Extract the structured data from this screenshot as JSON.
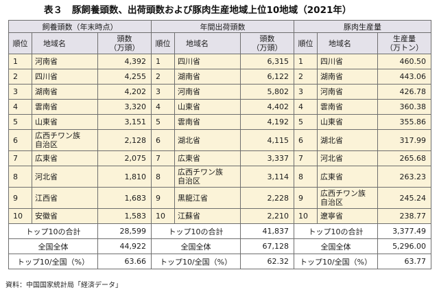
{
  "title": {
    "number": "表３",
    "text": "豚飼養頭数、出荷頭数および豚肉生産地域上位10地域（2021年）"
  },
  "groups": [
    "飼養頭数（年末時点）",
    "年間出荷頭数",
    "豚肉生産量"
  ],
  "columns": {
    "rank": "順位",
    "region": "地域名",
    "g1_value": [
      "頭数",
      "（万頭）"
    ],
    "g2_value": [
      "頭数",
      "（万頭）"
    ],
    "g3_value": [
      "生産量",
      "（万トン）"
    ]
  },
  "rows": [
    {
      "rank": "1",
      "g1": {
        "region": [
          "河南省"
        ],
        "value": "4,392"
      },
      "g2": {
        "region": [
          "四川省"
        ],
        "value": "6,315"
      },
      "g3": {
        "region": [
          "四川省"
        ],
        "value": "460.50"
      }
    },
    {
      "rank": "2",
      "g1": {
        "region": [
          "四川省"
        ],
        "value": "4,255"
      },
      "g2": {
        "region": [
          "湖南省"
        ],
        "value": "6,122"
      },
      "g3": {
        "region": [
          "湖南省"
        ],
        "value": "443.06"
      }
    },
    {
      "rank": "3",
      "g1": {
        "region": [
          "湖南省"
        ],
        "value": "4,202"
      },
      "g2": {
        "region": [
          "河南省"
        ],
        "value": "5,802"
      },
      "g3": {
        "region": [
          "河南省"
        ],
        "value": "426.78"
      }
    },
    {
      "rank": "4",
      "g1": {
        "region": [
          "雲南省"
        ],
        "value": "3,320"
      },
      "g2": {
        "region": [
          "山東省"
        ],
        "value": "4,402"
      },
      "g3": {
        "region": [
          "雲南省"
        ],
        "value": "360.38"
      }
    },
    {
      "rank": "5",
      "g1": {
        "region": [
          "山東省"
        ],
        "value": "3,151"
      },
      "g2": {
        "region": [
          "雲南省"
        ],
        "value": "4,192"
      },
      "g3": {
        "region": [
          "山東省"
        ],
        "value": "355.86"
      }
    },
    {
      "rank": "6",
      "g1": {
        "region": [
          "広西チワン族",
          "自治区"
        ],
        "value": "2,128"
      },
      "g2": {
        "region": [
          "湖北省"
        ],
        "value": "4,115"
      },
      "g3": {
        "region": [
          "湖北省"
        ],
        "value": "317.99"
      }
    },
    {
      "rank": "7",
      "g1": {
        "region": [
          "広東省"
        ],
        "value": "2,075"
      },
      "g2": {
        "region": [
          "広東省"
        ],
        "value": "3,337"
      },
      "g3": {
        "region": [
          "河北省"
        ],
        "value": "265.68"
      }
    },
    {
      "rank": "8",
      "g1": {
        "region": [
          "河北省"
        ],
        "value": "1,810"
      },
      "g2": {
        "region": [
          "広西チワン族",
          "自治区"
        ],
        "value": "3,114"
      },
      "g3": {
        "region": [
          "広東省"
        ],
        "value": "263.23"
      }
    },
    {
      "rank": "9",
      "g1": {
        "region": [
          "江西省"
        ],
        "value": "1,683"
      },
      "g2": {
        "region": [
          "黒龍江省"
        ],
        "value": "2,228"
      },
      "g3": {
        "region": [
          "広西チワン族",
          "自治区"
        ],
        "value": "245.24"
      }
    },
    {
      "rank": "10",
      "g1": {
        "region": [
          "安徽省"
        ],
        "value": "1,583"
      },
      "g2": {
        "region": [
          "江蘇省"
        ],
        "value": "2,210"
      },
      "g3": {
        "region": [
          "遼寧省"
        ],
        "value": "238.77"
      }
    }
  ],
  "summary": [
    {
      "label": "トップ10の合計",
      "values": [
        "28,599",
        "41,837",
        "3,377.49"
      ]
    },
    {
      "label": "全国全体",
      "values": [
        "44,922",
        "67,128",
        "5,296.00"
      ]
    },
    {
      "label": "トップ10/全国（%）",
      "values": [
        "63.66",
        "62.32",
        "63.77"
      ]
    }
  ],
  "source": "資料：中国国家統計局「経済データ」"
}
